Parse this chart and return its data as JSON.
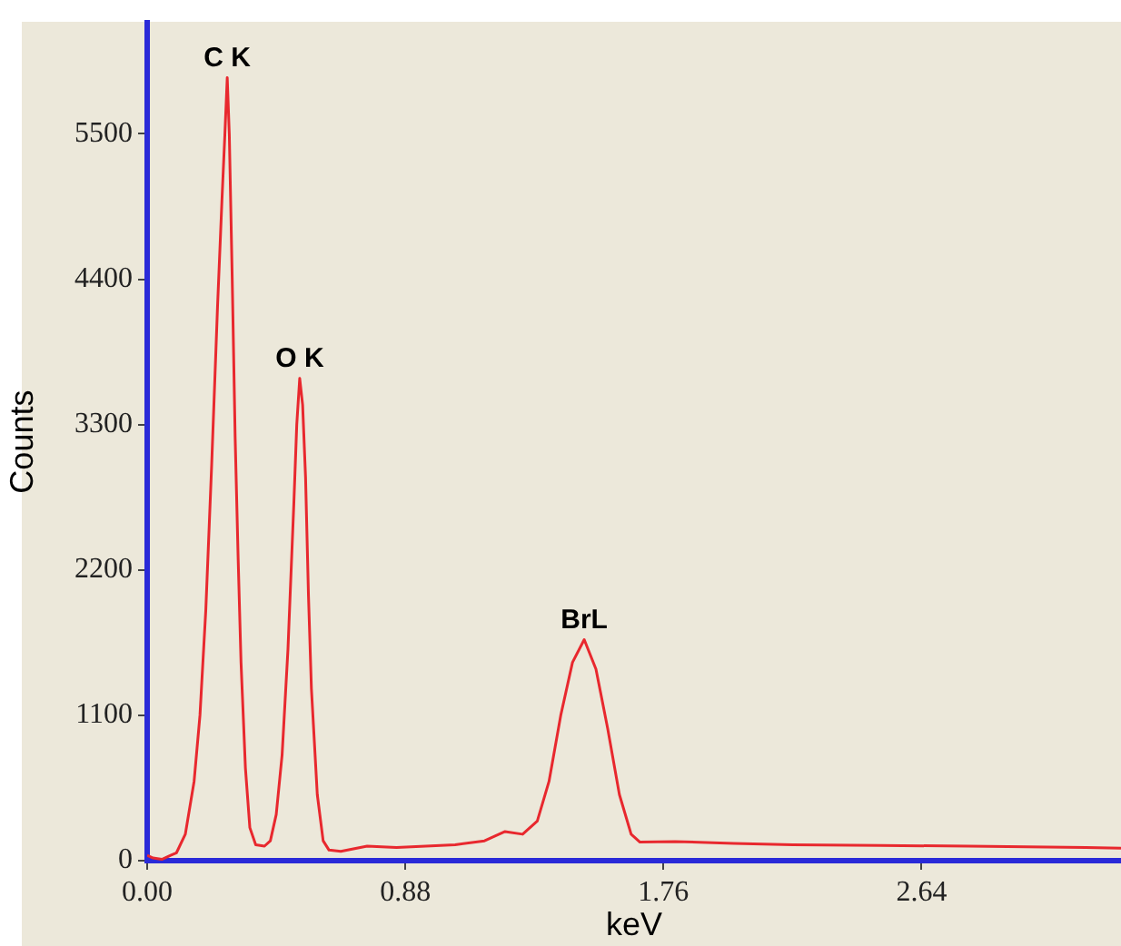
{
  "chart_data": {
    "type": "line",
    "xlabel": "keV",
    "ylabel": "Counts",
    "xlim": [
      0,
      3.32
    ],
    "ylim": [
      0,
      6340
    ],
    "xticks": [
      {
        "value": 0,
        "label": "0.00"
      },
      {
        "value": 0.88,
        "label": "0.88"
      },
      {
        "value": 1.76,
        "label": "1.76"
      },
      {
        "value": 2.64,
        "label": "2.64"
      }
    ],
    "yticks": [
      0,
      1100,
      2200,
      3300,
      4400,
      5500
    ],
    "marker": "none",
    "series": [
      {
        "color": "#e8282e",
        "x": [
          0,
          0.02,
          0.05,
          0.08,
          0.1,
          0.13,
          0.16,
          0.18,
          0.2,
          0.22,
          0.24,
          0.255,
          0.265,
          0.273,
          0.28,
          0.29,
          0.3,
          0.31,
          0.32,
          0.335,
          0.35,
          0.37,
          0.4,
          0.42,
          0.44,
          0.46,
          0.48,
          0.5,
          0.51,
          0.52,
          0.53,
          0.54,
          0.55,
          0.56,
          0.58,
          0.6,
          0.62,
          0.66,
          0.75,
          0.85,
          0.95,
          1.05,
          1.15,
          1.22,
          1.28,
          1.33,
          1.37,
          1.41,
          1.45,
          1.49,
          1.53,
          1.57,
          1.61,
          1.65,
          1.68,
          1.8,
          2,
          2.2,
          2.5,
          2.8,
          3,
          3.2,
          3.32
        ],
        "values": [
          40,
          20,
          10,
          40,
          60,
          200,
          600,
          1100,
          1900,
          3000,
          4200,
          5000,
          5500,
          5926,
          5500,
          4400,
          3200,
          2300,
          1500,
          700,
          250,
          120,
          110,
          150,
          350,
          800,
          1600,
          2700,
          3300,
          3650,
          3450,
          2900,
          2000,
          1300,
          500,
          150,
          80,
          70,
          110,
          100,
          110,
          120,
          150,
          220,
          200,
          300,
          600,
          1100,
          1500,
          1673,
          1450,
          1000,
          500,
          200,
          140,
          145,
          130,
          120,
          115,
          110,
          105,
          100,
          95
        ]
      }
    ],
    "annotations": [
      {
        "text": "C K",
        "x": 0.273,
        "y": 5926
      },
      {
        "text": "O K",
        "x": 0.52,
        "y": 3650
      },
      {
        "text": "BrL",
        "x": 1.49,
        "y": 1673
      }
    ]
  }
}
